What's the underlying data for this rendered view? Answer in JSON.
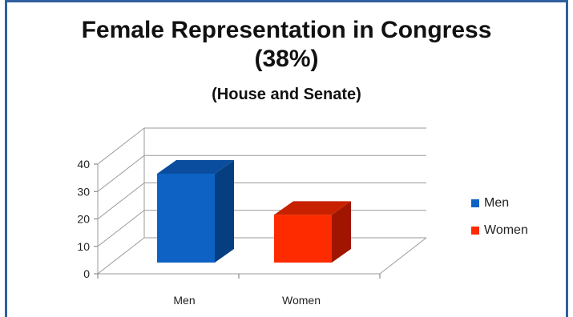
{
  "chart_data": {
    "type": "bar",
    "title_line1": "Female Representation in Congress",
    "title_line2": "(38%)",
    "subtitle": "(House and Senate)",
    "categories": [
      "Men",
      "Women"
    ],
    "values": [
      33,
      18
    ],
    "colors": [
      "#0e62c4",
      "#ff2b00"
    ],
    "side_colors": [
      "#063f80",
      "#a01500"
    ],
    "top_colors": [
      "#0a4d9e",
      "#c82100"
    ],
    "ylim": [
      0,
      40
    ],
    "yticks": [
      "0",
      "10",
      "20",
      "30",
      "40"
    ],
    "grid": true,
    "legend_position": "right",
    "legend": [
      {
        "label": "Men",
        "color": "#0e62c4"
      },
      {
        "label": "Women",
        "color": "#ff2b00"
      }
    ]
  }
}
